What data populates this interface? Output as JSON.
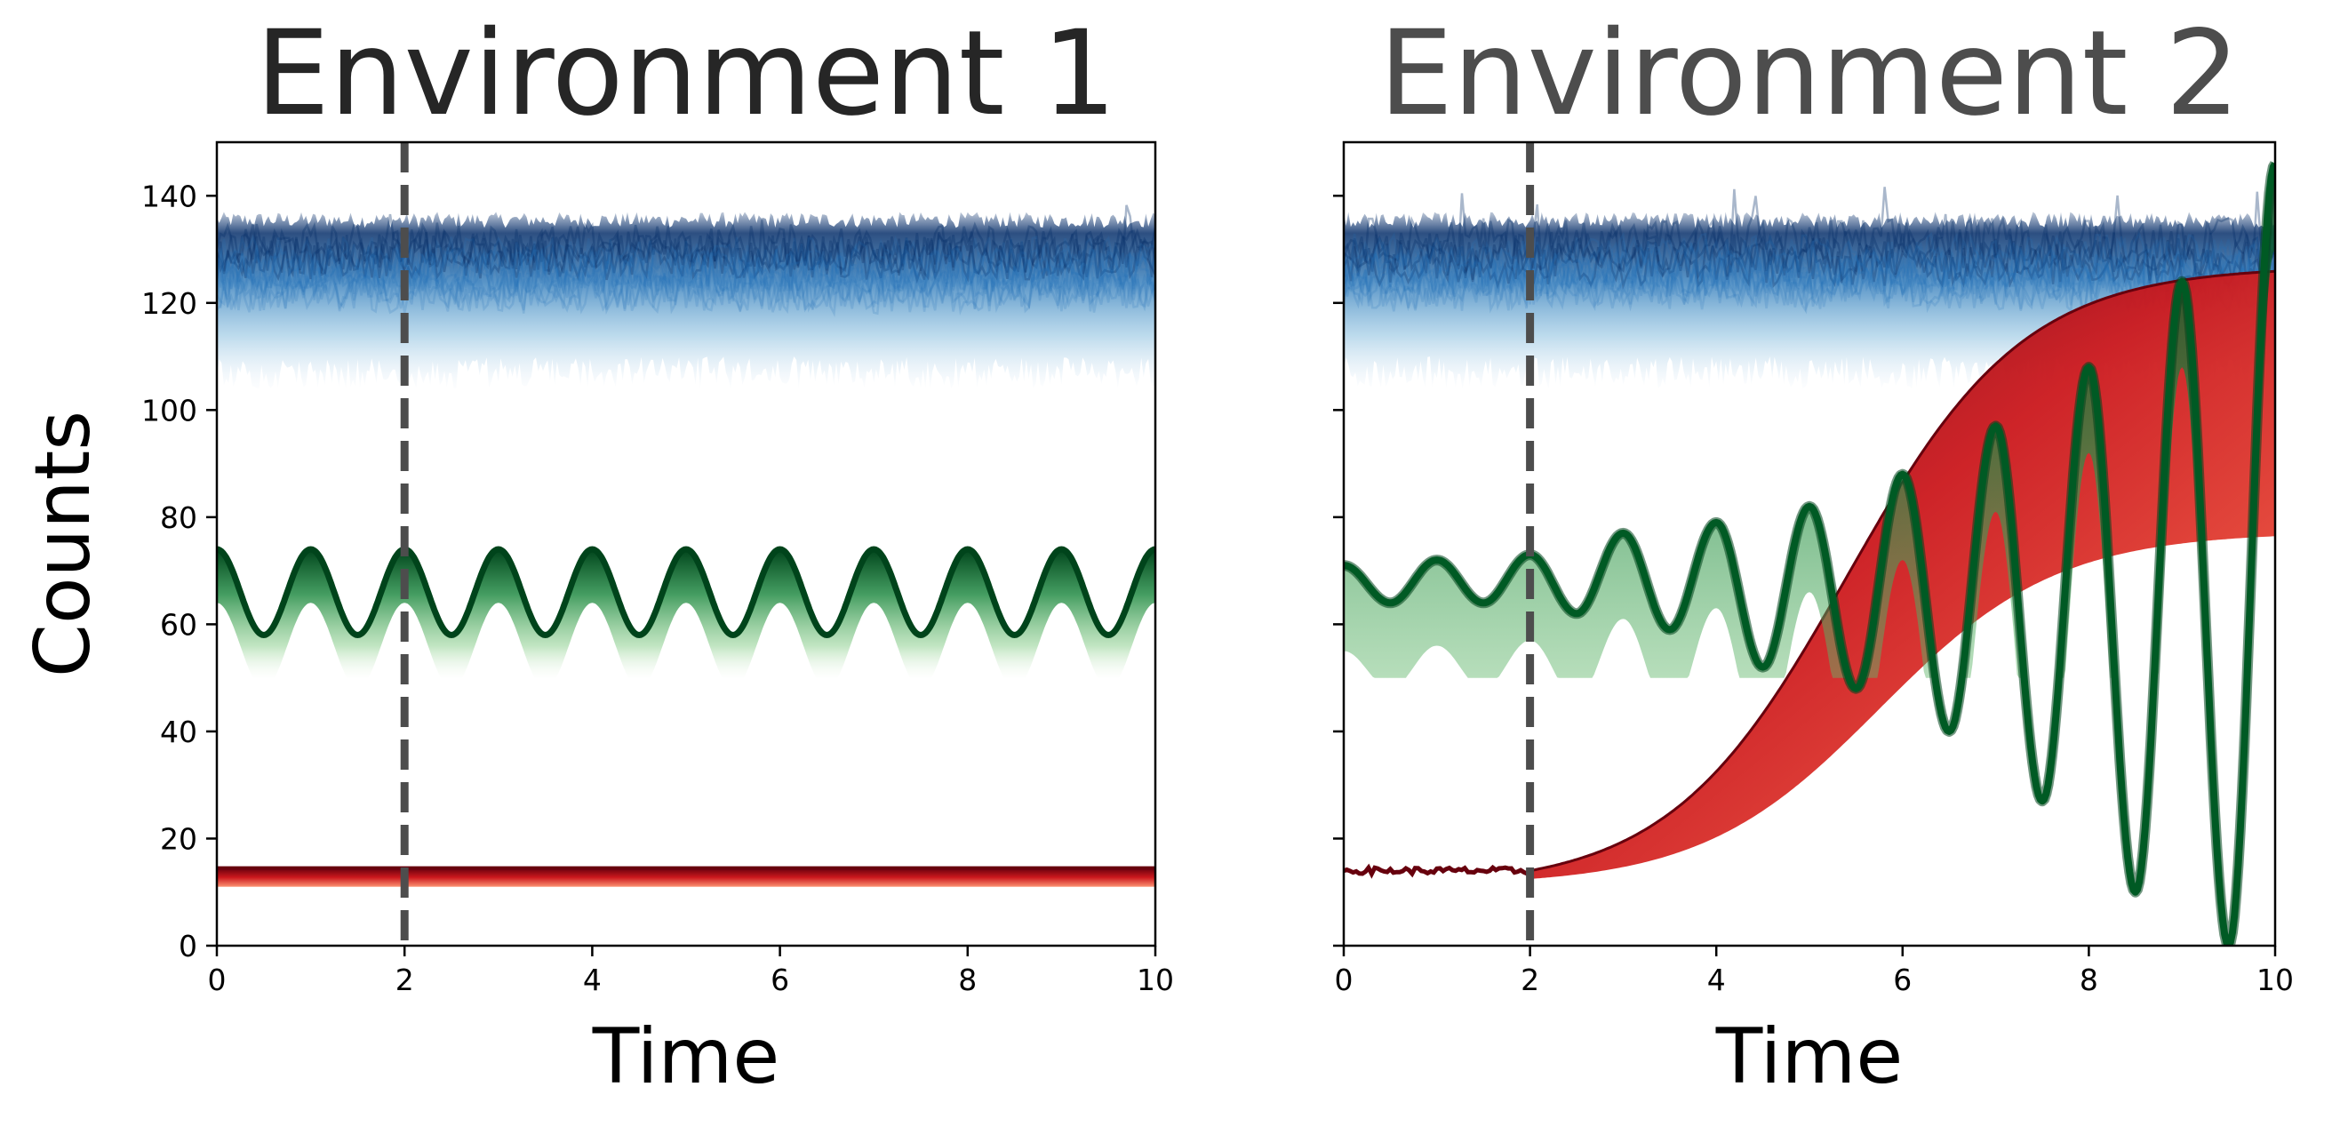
{
  "figure": {
    "ylabel": "Counts"
  },
  "chart_data": [
    {
      "type": "line",
      "title": "Environment 1",
      "title_color": "#262626",
      "xlabel": "Time",
      "ylabel": "Counts",
      "xlim": [
        0,
        10
      ],
      "ylim": [
        0,
        150
      ],
      "xticks": [
        "0",
        "2",
        "4",
        "6",
        "8",
        "10"
      ],
      "yticks": [
        "0",
        "20",
        "40",
        "60",
        "80",
        "100",
        "120",
        "140"
      ],
      "grid": false,
      "vline": {
        "x": 2,
        "style": "dashed",
        "color": "#4d4d4d"
      },
      "series": [
        {
          "group": "blue",
          "colormap": "Blues",
          "kind": "noisy-band",
          "upper_range": [
            126,
            138
          ],
          "lower_range": [
            104,
            120
          ]
        },
        {
          "group": "green",
          "colormap": "Greens",
          "kind": "sinusoid",
          "center": 66,
          "amplitude": 8,
          "period": 1,
          "lower_envelope": 50
        },
        {
          "group": "red",
          "colormap": "Reds",
          "kind": "flat-band",
          "upper": 14.5,
          "lower": 11
        }
      ]
    },
    {
      "type": "line",
      "title": "Environment 2",
      "title_color": "#4d4d4d",
      "xlabel": "Time",
      "ylabel": "",
      "xlim": [
        0,
        10
      ],
      "ylim": [
        0,
        150
      ],
      "xticks": [
        "0",
        "2",
        "4",
        "6",
        "8",
        "10"
      ],
      "yticks": [
        "0",
        "20",
        "40",
        "60",
        "80",
        "100",
        "120",
        "140"
      ],
      "show_ytick_labels": false,
      "grid": false,
      "vline": {
        "x": 2,
        "style": "dashed",
        "color": "#4d4d4d"
      },
      "series": [
        {
          "group": "blue",
          "colormap": "Blues",
          "kind": "noisy-band",
          "upper_range": [
            126,
            138
          ],
          "lower_range": [
            104,
            120
          ]
        },
        {
          "group": "red",
          "colormap": "Reds",
          "kind": "logistic-growth",
          "start_x": 2,
          "start_y": 14,
          "upper_plateau": 130,
          "lower_plateau": 80
        },
        {
          "group": "green",
          "colormap": "Greens",
          "kind": "growing-oscillation",
          "center_start": 66,
          "amplitude_start": 5,
          "peaks": [
            [
              1,
              72
            ],
            [
              2,
              73
            ],
            [
              3,
              77
            ],
            [
              4,
              79
            ],
            [
              5,
              82
            ],
            [
              6,
              88
            ],
            [
              7,
              97
            ],
            [
              8,
              108
            ],
            [
              9,
              124
            ],
            [
              10,
              146
            ]
          ],
          "troughs": [
            [
              0.5,
              64
            ],
            [
              1.5,
              64
            ],
            [
              2.5,
              62
            ],
            [
              3.5,
              59
            ],
            [
              4.5,
              52
            ],
            [
              5.5,
              48
            ],
            [
              6.5,
              40
            ],
            [
              7.5,
              27
            ],
            [
              8.5,
              10
            ],
            [
              9.5,
              0
            ]
          ]
        }
      ]
    }
  ]
}
